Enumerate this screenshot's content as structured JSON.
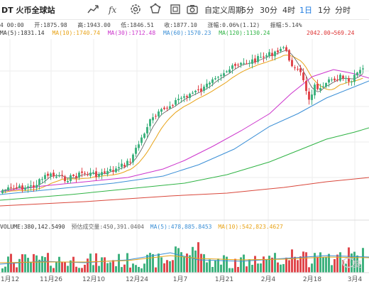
{
  "header": {
    "pair_title": "DT 火币全球站",
    "icons": [
      "chart-type-icon",
      "indicator-icon",
      "settings-icon",
      "shape-drawing-icon",
      "fullscreen-icon",
      "camera-icon"
    ],
    "period_label": "自定义周期",
    "timeframes": [
      "5分",
      "30分",
      "4时",
      "1日",
      "1分",
      "分时"
    ],
    "active_timeframe": "1日"
  },
  "ohlc": {
    "time": "4 00:00",
    "open_label": "开:",
    "open": "1875.98",
    "high_label": "高:",
    "high": "1943.00",
    "low_label": "低:",
    "low": "1846.51",
    "close_label": "收:",
    "close": "1877.10",
    "change_label": "涨幅:",
    "change": "0.06%(1.12)",
    "amplitude_label": "振幅:",
    "amplitude": "5.14%"
  },
  "ma": {
    "ma5": "MA(5):1831.14",
    "ma10": "MA(10):1740.74",
    "ma30": "MA(30):1712.48",
    "ma60": "MA(60):1570.23",
    "ma120": "MA(120):1130.24",
    "max_tag": "2042.00",
    "top_price": "569.24",
    "colors": {
      "ma5": "#222222",
      "ma10": "#e8a317",
      "ma30": "#cc33cc",
      "ma60": "#3b8fd6",
      "ma120": "#2fb344",
      "ma_long": "#d9473b"
    }
  },
  "volume": {
    "volume_label": "VOLUME:380,142.5490",
    "est_label": "预估成交量:450,391.0404",
    "ma5_label": "MA(5):478,885.8453",
    "ma10_label": "MA(10):542,823.4627"
  },
  "x_axis": [
    "1月12",
    "11月26",
    "12月10",
    "12月24",
    "1月7",
    "1月21",
    "2月4",
    "2月18",
    "3月4"
  ],
  "colors": {
    "up": "#3fb27f",
    "down": "#e0474c",
    "grid": "#eeeeee",
    "accent": "#1e7be0"
  },
  "watermark": "复"
}
